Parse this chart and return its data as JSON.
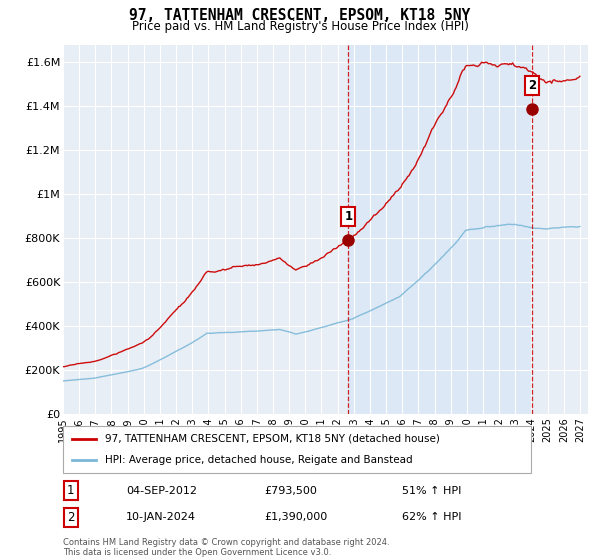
{
  "title": "97, TATTENHAM CRESCENT, EPSOM, KT18 5NY",
  "subtitle": "Price paid vs. HM Land Registry's House Price Index (HPI)",
  "ylabel_ticks": [
    "£0",
    "£200K",
    "£400K",
    "£600K",
    "£800K",
    "£1M",
    "£1.2M",
    "£1.4M",
    "£1.6M"
  ],
  "ytick_vals": [
    0,
    200000,
    400000,
    600000,
    800000,
    1000000,
    1200000,
    1400000,
    1600000
  ],
  "ylim": [
    0,
    1680000
  ],
  "xlim_start": 1995.0,
  "xlim_end": 2027.5,
  "hpi_color": "#7bb8d8",
  "price_color": "#cc0000",
  "sale1_x": 2012.67,
  "sale1_y": 793500,
  "sale2_x": 2024.03,
  "sale2_y": 1390000,
  "legend_line1": "97, TATTENHAM CRESCENT, EPSOM, KT18 5NY (detached house)",
  "legend_line2": "HPI: Average price, detached house, Reigate and Banstead",
  "table_rows": [
    [
      "1",
      "04-SEP-2012",
      "£793,500",
      "51% ↑ HPI"
    ],
    [
      "2",
      "10-JAN-2024",
      "£1,390,000",
      "62% ↑ HPI"
    ]
  ],
  "footnote": "Contains HM Land Registry data © Crown copyright and database right 2024.\nThis data is licensed under the Open Government Licence v3.0.",
  "background_color": "#e8eef5",
  "shade_color": "#dce8f5",
  "grid_color": "#ffffff",
  "marker_color": "#990000",
  "vline_color": "#cc0000"
}
